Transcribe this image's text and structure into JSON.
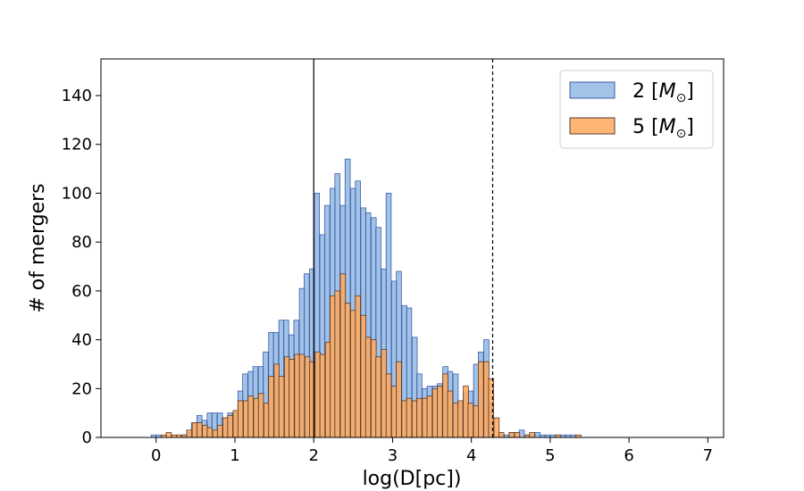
{
  "chart_data": {
    "type": "bar",
    "subtype": "overlaid-histogram",
    "title": "",
    "xlabel": "log(D[pc])",
    "ylabel": "# of mergers",
    "xlim": [
      -0.7,
      7.2
    ],
    "ylim": [
      0,
      155
    ],
    "xticks": [
      0,
      1,
      2,
      3,
      4,
      5,
      6,
      7
    ],
    "yticks": [
      0,
      20,
      40,
      60,
      80,
      100,
      120,
      140
    ],
    "bin_width": 0.065,
    "grid": false,
    "legend_position": "top-right",
    "reference_lines": [
      {
        "x": 2.0,
        "style": "solid"
      },
      {
        "x": 4.27,
        "style": "dashed"
      }
    ],
    "series": [
      {
        "name": "2 [M_⊙]",
        "legend_base": "2 [",
        "legend_symbol": "M",
        "legend_sub": "⊙",
        "legend_close": "]",
        "color": "#7aa8dd",
        "edge": "#3a5fa8",
        "opacity": 0.7,
        "points": [
          [
            -0.03,
            1
          ],
          [
            0.03,
            1
          ],
          [
            0.35,
            1
          ],
          [
            0.42,
            2
          ],
          [
            0.48,
            6
          ],
          [
            0.55,
            9
          ],
          [
            0.61,
            7
          ],
          [
            0.68,
            10
          ],
          [
            0.74,
            10
          ],
          [
            0.81,
            10
          ],
          [
            0.87,
            8
          ],
          [
            0.94,
            10
          ],
          [
            1.0,
            10
          ],
          [
            1.07,
            19
          ],
          [
            1.13,
            26
          ],
          [
            1.2,
            27
          ],
          [
            1.26,
            29
          ],
          [
            1.33,
            29
          ],
          [
            1.39,
            35
          ],
          [
            1.46,
            43
          ],
          [
            1.52,
            43
          ],
          [
            1.59,
            48
          ],
          [
            1.65,
            48
          ],
          [
            1.72,
            42
          ],
          [
            1.78,
            48
          ],
          [
            1.85,
            61
          ],
          [
            1.91,
            67
          ],
          [
            1.98,
            69
          ],
          [
            2.04,
            100
          ],
          [
            2.11,
            83
          ],
          [
            2.17,
            95
          ],
          [
            2.24,
            102
          ],
          [
            2.3,
            108
          ],
          [
            2.37,
            95
          ],
          [
            2.43,
            114
          ],
          [
            2.5,
            102
          ],
          [
            2.56,
            105
          ],
          [
            2.63,
            94
          ],
          [
            2.69,
            92
          ],
          [
            2.76,
            90
          ],
          [
            2.82,
            86
          ],
          [
            2.89,
            69
          ],
          [
            2.95,
            100
          ],
          [
            3.02,
            64
          ],
          [
            3.08,
            68
          ],
          [
            3.15,
            54
          ],
          [
            3.21,
            53
          ],
          [
            3.28,
            41
          ],
          [
            3.34,
            26
          ],
          [
            3.41,
            20
          ],
          [
            3.47,
            21
          ],
          [
            3.54,
            21
          ],
          [
            3.6,
            22
          ],
          [
            3.67,
            29
          ],
          [
            3.73,
            27
          ],
          [
            3.8,
            26
          ],
          [
            3.86,
            14
          ],
          [
            3.93,
            18
          ],
          [
            3.99,
            19
          ],
          [
            4.06,
            30
          ],
          [
            4.12,
            35
          ],
          [
            4.19,
            40
          ],
          [
            4.25,
            14
          ],
          [
            4.32,
            0
          ],
          [
            4.38,
            1
          ],
          [
            4.45,
            1
          ],
          [
            4.51,
            2
          ],
          [
            4.58,
            2
          ],
          [
            4.64,
            3
          ],
          [
            4.71,
            1
          ],
          [
            4.77,
            1
          ],
          [
            4.84,
            2
          ],
          [
            4.9,
            1
          ],
          [
            4.97,
            1
          ],
          [
            5.03,
            1
          ],
          [
            5.1,
            1
          ],
          [
            5.16,
            1
          ],
          [
            5.23,
            1
          ],
          [
            5.29,
            1
          ]
        ]
      },
      {
        "name": "5 [M_⊙]",
        "legend_base": "5 [",
        "legend_symbol": "M",
        "legend_sub": "⊙",
        "legend_close": "]",
        "color": "#ffa95c",
        "edge": "#5a3a2a",
        "opacity": 0.85,
        "points": [
          [
            0.1,
            1
          ],
          [
            0.16,
            2
          ],
          [
            0.23,
            1
          ],
          [
            0.29,
            1
          ],
          [
            0.36,
            1
          ],
          [
            0.42,
            3
          ],
          [
            0.49,
            6
          ],
          [
            0.55,
            6
          ],
          [
            0.62,
            5
          ],
          [
            0.68,
            4
          ],
          [
            0.75,
            3
          ],
          [
            0.81,
            5
          ],
          [
            0.88,
            8
          ],
          [
            0.94,
            9
          ],
          [
            1.01,
            11
          ],
          [
            1.07,
            15
          ],
          [
            1.14,
            15
          ],
          [
            1.2,
            17
          ],
          [
            1.27,
            16
          ],
          [
            1.33,
            18
          ],
          [
            1.4,
            14
          ],
          [
            1.46,
            25
          ],
          [
            1.53,
            30
          ],
          [
            1.59,
            25
          ],
          [
            1.66,
            33
          ],
          [
            1.72,
            32
          ],
          [
            1.79,
            34
          ],
          [
            1.85,
            34
          ],
          [
            1.92,
            33
          ],
          [
            1.98,
            31
          ],
          [
            2.05,
            35
          ],
          [
            2.11,
            34
          ],
          [
            2.18,
            39
          ],
          [
            2.24,
            58
          ],
          [
            2.3,
            60
          ],
          [
            2.37,
            67
          ],
          [
            2.43,
            55
          ],
          [
            2.5,
            52
          ],
          [
            2.56,
            58
          ],
          [
            2.63,
            50
          ],
          [
            2.69,
            41
          ],
          [
            2.76,
            40
          ],
          [
            2.82,
            33
          ],
          [
            2.89,
            36
          ],
          [
            2.95,
            26
          ],
          [
            3.02,
            21
          ],
          [
            3.08,
            31
          ],
          [
            3.15,
            15
          ],
          [
            3.21,
            16
          ],
          [
            3.28,
            15
          ],
          [
            3.34,
            16
          ],
          [
            3.41,
            16
          ],
          [
            3.47,
            17
          ],
          [
            3.54,
            20
          ],
          [
            3.6,
            21
          ],
          [
            3.67,
            26
          ],
          [
            3.73,
            19
          ],
          [
            3.8,
            14
          ],
          [
            3.86,
            15
          ],
          [
            3.93,
            21
          ],
          [
            3.99,
            14
          ],
          [
            4.06,
            13
          ],
          [
            4.12,
            31
          ],
          [
            4.19,
            31
          ],
          [
            4.25,
            24
          ],
          [
            4.32,
            8
          ],
          [
            4.38,
            2
          ],
          [
            4.45,
            0
          ],
          [
            4.51,
            2
          ],
          [
            4.58,
            2
          ],
          [
            4.64,
            0
          ],
          [
            4.71,
            1
          ],
          [
            4.77,
            2
          ],
          [
            4.84,
            0
          ],
          [
            4.9,
            0
          ],
          [
            4.97,
            0
          ],
          [
            5.03,
            0
          ],
          [
            5.1,
            1
          ],
          [
            5.16,
            0
          ],
          [
            5.23,
            0
          ],
          [
            5.29,
            0
          ],
          [
            5.36,
            1
          ]
        ]
      }
    ]
  }
}
